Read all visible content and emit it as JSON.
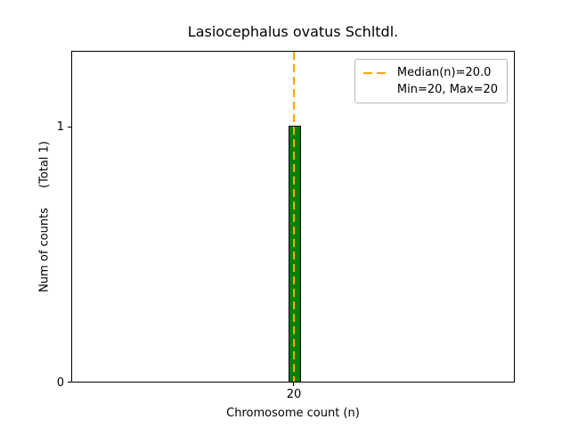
{
  "chart_data": {
    "type": "bar",
    "title": "Lasiocephalus ovatus Schltdl.",
    "xlabel": "Chromosome count (n)",
    "ylabel": "Num of counts",
    "ylabel_secondary": "(Total 1)",
    "categories": [
      20
    ],
    "values": [
      1
    ],
    "total_counts": 1,
    "median": 20.0,
    "min": 20,
    "max": 20,
    "xticks": [
      "20"
    ],
    "yticks": [
      "0",
      "1"
    ],
    "ylim": [
      0,
      1.3
    ],
    "grid": false,
    "legend_position": "upper right",
    "legend": [
      {
        "label": "Median(n)=20.0",
        "sample": "orange-dashed-line"
      },
      {
        "label": "Min=20, Max=20",
        "sample": "none"
      }
    ],
    "colors": {
      "bar_fill": "#008000",
      "bar_edge": "#000000",
      "median_line": "#FFA500",
      "axes": "#000000",
      "background": "#ffffff"
    }
  }
}
